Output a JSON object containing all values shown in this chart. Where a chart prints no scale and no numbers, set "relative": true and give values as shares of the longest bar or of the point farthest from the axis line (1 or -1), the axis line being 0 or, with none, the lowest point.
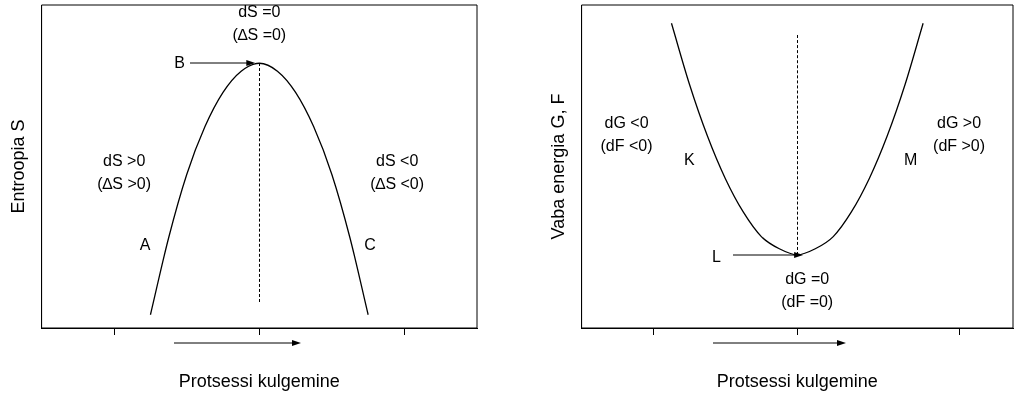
{
  "chart_data": [
    {
      "type": "line",
      "relative": true,
      "xlabel": "Protsessi kulgemine",
      "ylabel": "Entroopia S",
      "marker": "none",
      "legend": false,
      "categories": [
        null,
        null,
        null,
        null,
        null,
        null,
        null,
        null,
        null,
        null,
        null,
        null,
        null,
        null,
        null,
        null,
        null,
        null,
        null,
        null,
        null,
        null,
        null,
        null,
        null
      ],
      "series": [
        {
          "color": "#000000",
          "values": [
            null,
            null,
            null,
            null,
            null,
            null,
            0.05,
            0.34,
            0.58,
            0.76,
            0.89,
            0.97,
            1,
            0.97,
            0.89,
            0.76,
            0.58,
            0.34,
            0.05,
            null,
            null,
            null,
            null,
            null,
            null
          ]
        }
      ],
      "annotations": [
        "dS =0\n(∆S =0)",
        "B",
        "dS >0\n(∆S >0)",
        "dS <0\n(∆S <0)",
        "A",
        "C"
      ]
    },
    {
      "type": "line",
      "relative": true,
      "xlabel": "Protsessi kulgemine",
      "ylabel": "Vaba energia G, F",
      "marker": "none",
      "legend": false,
      "categories": [
        null,
        null,
        null,
        null,
        null,
        null,
        null,
        null,
        null,
        null,
        null,
        null,
        null,
        null,
        null,
        null,
        null,
        null,
        null,
        null,
        null,
        null,
        null,
        null,
        null
      ],
      "series": [
        {
          "color": "#000000",
          "values": [
            null,
            null,
            null,
            null,
            null,
            1,
            0.8,
            0.63,
            0.49,
            0.38,
            0.3,
            0.26,
            0.24,
            0.26,
            0.3,
            0.38,
            0.49,
            0.63,
            0.8,
            1,
            null,
            null,
            null,
            null,
            null
          ]
        }
      ],
      "annotations": [
        "dG <0\n(dF <0)",
        "dG >0\n(dF >0)",
        "K",
        "M",
        "L",
        "dG =0\n(dF =0)"
      ]
    }
  ]
}
